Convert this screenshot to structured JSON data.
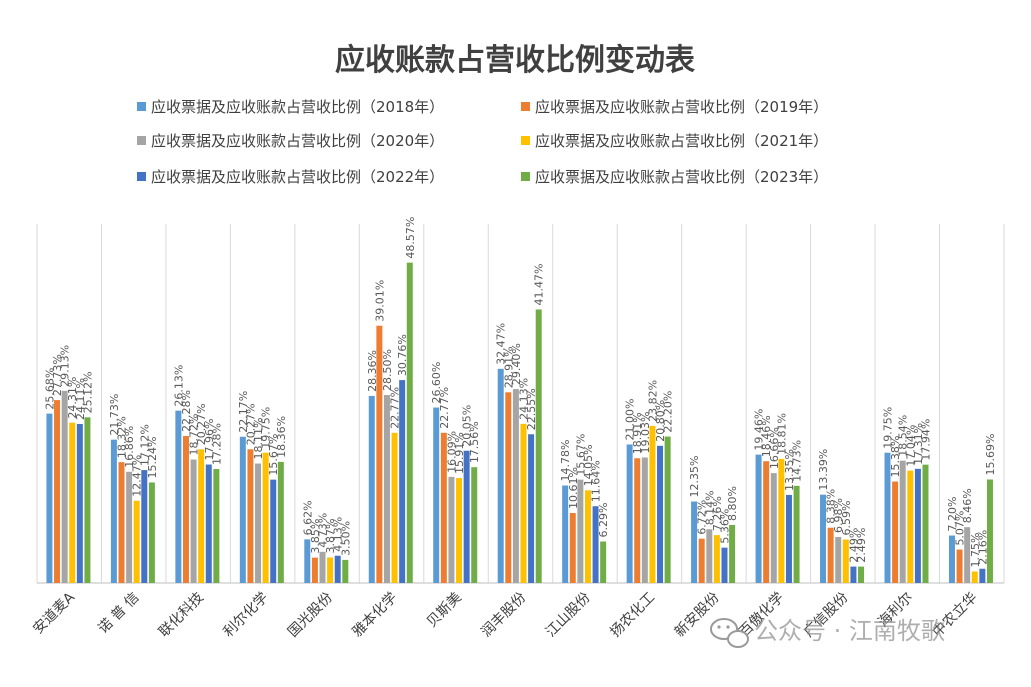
{
  "chart_data": {
    "type": "bar",
    "title": "应收账款占营收比例变动表",
    "categories": [
      "安道麦A",
      "诺 普 信",
      "联化科技",
      "利尔化学",
      "国光股份",
      "雅本化学",
      "贝斯美",
      "润丰股份",
      "江山股份",
      "扬农化工",
      "新安股份",
      "百傲化学",
      "广信股份",
      "海利尔",
      "中农立华"
    ],
    "series": [
      {
        "name": "应收票据及应收账款占营收比例（2018年）",
        "color": "#5B9BD5",
        "values": [
          25.68,
          21.73,
          26.13,
          22.17,
          6.62,
          28.36,
          26.6,
          32.47,
          14.78,
          21.0,
          12.35,
          19.46,
          13.39,
          19.75,
          7.2
        ],
        "labels": [
          "25.68%",
          "21.73%",
          "26.13%",
          "22.17%",
          "6.62%",
          "28.36%",
          "26.60%",
          "32.47%",
          "14.78%",
          "21.00%",
          "12.35%",
          "19.46%",
          "13.39%",
          "19.75%",
          "7.20%"
        ]
      },
      {
        "name": "应收票据及应收账款占营收比例（2019年）",
        "color": "#ED7D31",
        "values": [
          27.73,
          18.32,
          22.28,
          20.27,
          3.85,
          39.01,
          22.77,
          28.91,
          10.61,
          18.91,
          6.72,
          18.46,
          8.38,
          15.38,
          5.07
        ],
        "labels": [
          "27.73%",
          "18.32%",
          "22.28%",
          "20.27%",
          "3.85%",
          "39.01%",
          "22.77%",
          "28.91%",
          "10.61%",
          "18.91%",
          "6.72%",
          "18.46%",
          "8.38%",
          "15.38%",
          "5.07%"
        ]
      },
      {
        "name": "应收票据及应收账款占营收比例（2020年）",
        "color": "#A5A5A5",
        "values": [
          29.13,
          16.86,
          18.72,
          18.11,
          4.73,
          28.5,
          16.09,
          29.4,
          15.67,
          19.03,
          8.14,
          16.66,
          6.98,
          18.54,
          8.46
        ],
        "labels": [
          "29.13%",
          "16.86%",
          "18.72%",
          "18.11%",
          "4.73%",
          "28.50%",
          "16.09%",
          "29.40%",
          "15.67%",
          "19.03%",
          "8.14%",
          "16.66%",
          "6.98%",
          "18.54%",
          "8.46%"
        ]
      },
      {
        "name": "应收票据及应收账款占营收比例（2021年）",
        "color": "#FFC000",
        "values": [
          24.31,
          12.47,
          20.27,
          19.75,
          3.87,
          22.77,
          15.91,
          24.13,
          14.05,
          23.82,
          7.26,
          18.81,
          6.59,
          17.04,
          1.75
        ],
        "labels": [
          "24.31%",
          "12.47%",
          "20.27%",
          "19.75%",
          "3.87%",
          "22.77%",
          "15.91%",
          "24.13%",
          "14.05%",
          "23.82%",
          "7.26%",
          "18.81%",
          "6.59%",
          "17.04%",
          "1.75%"
        ]
      },
      {
        "name": "应收票据及应收账款占营收比例（2022年）",
        "color": "#4472C4",
        "values": [
          24.11,
          17.12,
          17.96,
          15.67,
          4.13,
          30.76,
          20.05,
          22.55,
          11.64,
          20.8,
          5.36,
          13.35,
          2.49,
          17.31,
          2.16
        ],
        "labels": [
          "24.11%",
          "17.12%",
          "17.96%",
          "15.67%",
          "4.13%",
          "30.76%",
          "20.05%",
          "22.55%",
          "11.64%",
          "20.80%",
          "5.36%",
          "13.35%",
          "2.49%",
          "17.31%",
          "2.16%"
        ]
      },
      {
        "name": "应收票据及应收账款占营收比例（2023年）",
        "color": "#70AD47",
        "values": [
          25.12,
          15.24,
          17.28,
          18.36,
          3.5,
          48.57,
          17.56,
          41.47,
          6.29,
          22.2,
          8.8,
          14.73,
          2.49,
          17.94,
          15.69
        ],
        "labels": [
          "25.12%",
          "15.24%",
          "17.28%",
          "18.36%",
          "3.50%",
          "48.57%",
          "17.56%",
          "41.47%",
          "6.29%",
          "22.20%",
          "8.80%",
          "14.73%",
          "2.49%",
          "17.94%",
          "15.69%"
        ]
      }
    ],
    "ylim": [
      0,
      52
    ],
    "grid": "vertical-category-separators",
    "legend_position": "top"
  },
  "watermark": {
    "icon": "wechat-icon",
    "text": "公众号 · 江南牧歌"
  }
}
